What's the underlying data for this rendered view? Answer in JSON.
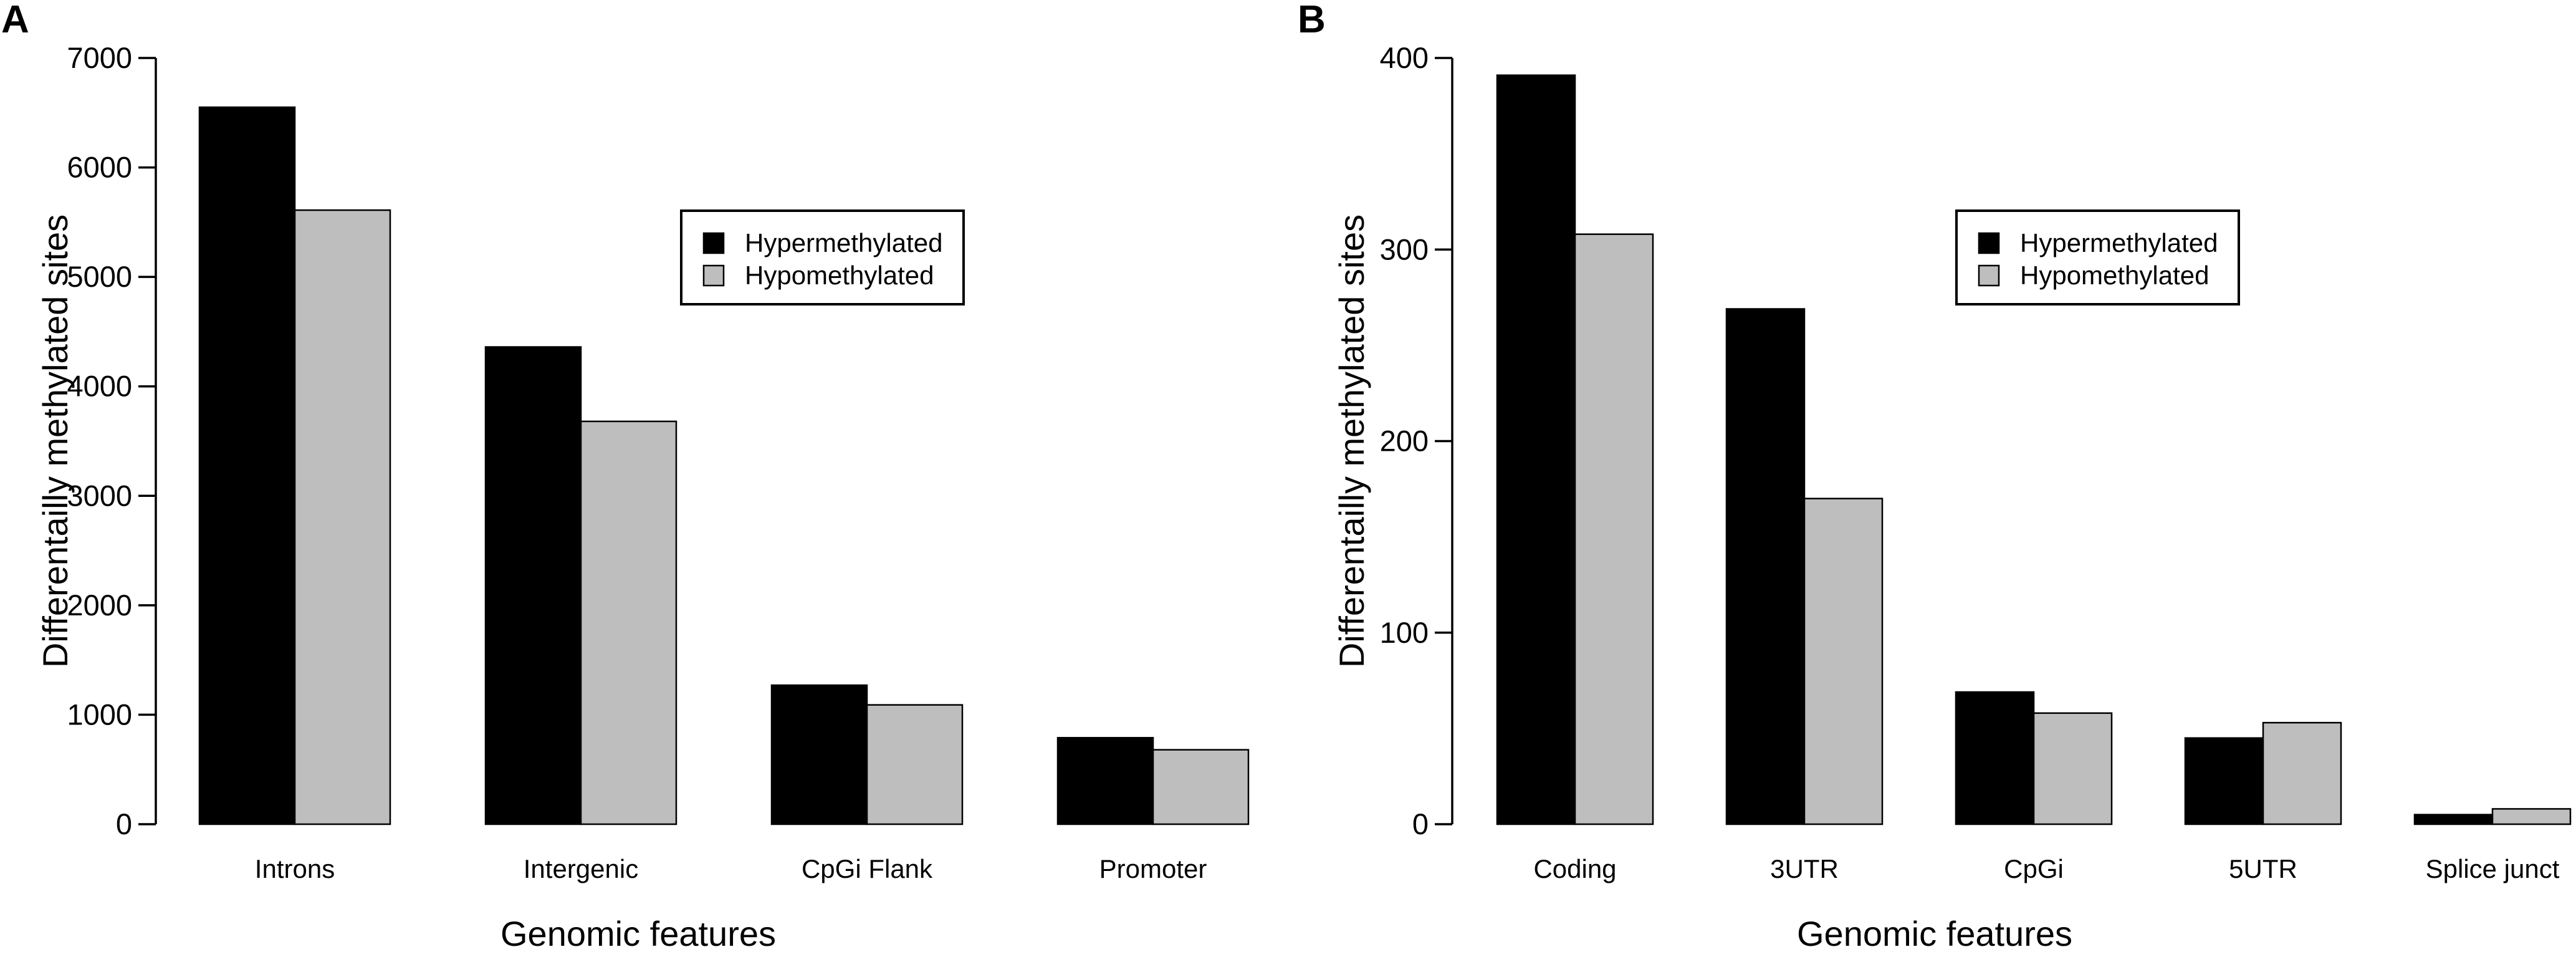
{
  "chart_data": [
    {
      "panel": "A",
      "type": "bar",
      "xlabel": "Genomic features",
      "ylabel": "Differentailly methylated sites",
      "ylim": [
        0,
        7000
      ],
      "yticks": [
        0,
        1000,
        2000,
        3000,
        4000,
        5000,
        6000,
        7000
      ],
      "categories": [
        "Introns",
        "Intergenic",
        "CpGi Flank",
        "Promoter"
      ],
      "series": [
        {
          "name": "Hypermethylated",
          "color": "#000000",
          "values": [
            6550,
            4360,
            1270,
            790
          ]
        },
        {
          "name": "Hypomethylated",
          "color": "#bebebe",
          "values": [
            5610,
            3680,
            1090,
            680
          ]
        }
      ],
      "legend_position": "upper-right"
    },
    {
      "panel": "B",
      "type": "bar",
      "xlabel": "Genomic features",
      "ylabel": "Differentailly methylated sites",
      "ylim": [
        0,
        400
      ],
      "yticks": [
        0,
        100,
        200,
        300,
        400
      ],
      "categories": [
        "Coding",
        "3UTR",
        "CpGi",
        "5UTR",
        "Splice junct"
      ],
      "series": [
        {
          "name": "Hypermethylated",
          "color": "#000000",
          "values": [
            391,
            269,
            69,
            45,
            5
          ]
        },
        {
          "name": "Hypomethylated",
          "color": "#bebebe",
          "values": [
            308,
            170,
            58,
            53,
            8
          ]
        }
      ],
      "legend_position": "upper-right"
    }
  ]
}
